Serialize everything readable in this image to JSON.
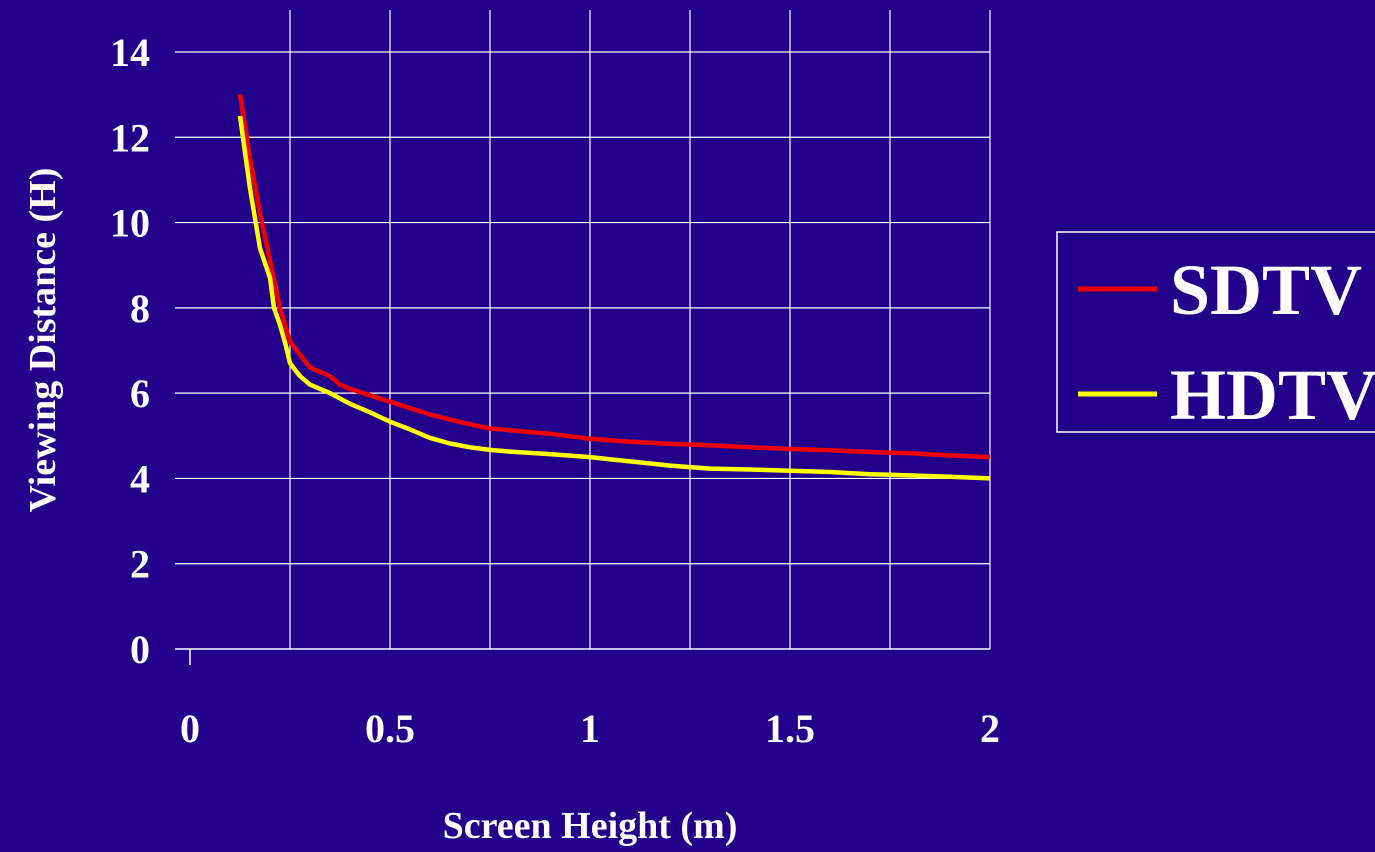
{
  "chart_data": {
    "type": "line",
    "xlabel": "Screen Height (m)",
    "ylabel": "Viewing Distance (H)",
    "xlim": [
      0,
      2
    ],
    "ylim": [
      0,
      14
    ],
    "x_ticks": [
      "0",
      "0.5",
      "1",
      "1.5",
      "2"
    ],
    "y_ticks": [
      "0",
      "2",
      "4",
      "6",
      "8",
      "10",
      "12",
      "14"
    ],
    "grid": true,
    "legend_position": "right",
    "series": [
      {
        "name": "SDTV",
        "color": "#ee0000",
        "x": [
          0.125,
          0.15,
          0.175,
          0.2,
          0.225,
          0.25,
          0.275,
          0.3,
          0.325,
          0.35,
          0.375,
          0.4,
          0.45,
          0.5,
          0.55,
          0.6,
          0.65,
          0.7,
          0.75,
          0.8,
          0.9,
          1.0,
          1.1,
          1.2,
          1.3,
          1.4,
          1.5,
          1.6,
          1.7,
          1.8,
          1.9,
          2.0
        ],
        "values": [
          13.0,
          11.5,
          10.2,
          9.1,
          8.0,
          7.2,
          6.9,
          6.6,
          6.5,
          6.4,
          6.2,
          6.1,
          5.95,
          5.8,
          5.65,
          5.5,
          5.38,
          5.27,
          5.17,
          5.13,
          5.05,
          4.93,
          4.86,
          4.81,
          4.78,
          4.73,
          4.69,
          4.66,
          4.62,
          4.59,
          4.54,
          4.5
        ]
      },
      {
        "name": "HDTV",
        "color": "#ffff00",
        "x": [
          0.125,
          0.15,
          0.175,
          0.2,
          0.21,
          0.225,
          0.24,
          0.25,
          0.275,
          0.3,
          0.325,
          0.35,
          0.4,
          0.45,
          0.5,
          0.55,
          0.6,
          0.65,
          0.7,
          0.75,
          0.8,
          0.9,
          1.0,
          1.1,
          1.2,
          1.3,
          1.4,
          1.5,
          1.6,
          1.7,
          1.8,
          1.9,
          2.0
        ],
        "values": [
          12.5,
          10.8,
          9.4,
          8.7,
          8.0,
          7.6,
          7.1,
          6.7,
          6.4,
          6.2,
          6.1,
          6.0,
          5.75,
          5.55,
          5.33,
          5.15,
          4.95,
          4.82,
          4.73,
          4.67,
          4.63,
          4.57,
          4.5,
          4.4,
          4.3,
          4.23,
          4.21,
          4.18,
          4.15,
          4.1,
          4.07,
          4.04,
          4.0
        ]
      }
    ]
  }
}
